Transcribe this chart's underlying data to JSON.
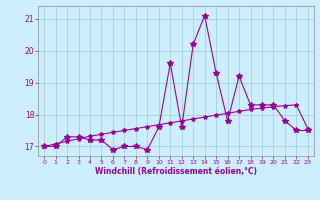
{
  "x": [
    0,
    1,
    2,
    3,
    4,
    5,
    6,
    7,
    8,
    9,
    10,
    11,
    12,
    13,
    14,
    15,
    16,
    17,
    18,
    19,
    20,
    21,
    22,
    23
  ],
  "y_main": [
    17.0,
    17.0,
    17.3,
    17.3,
    17.2,
    17.2,
    16.9,
    17.0,
    17.0,
    16.9,
    17.6,
    19.6,
    17.6,
    20.2,
    21.1,
    19.3,
    17.8,
    19.2,
    18.3,
    18.3,
    18.3,
    17.8,
    17.5,
    17.5
  ],
  "y_trend": [
    17.0,
    17.08,
    17.16,
    17.24,
    17.32,
    17.38,
    17.44,
    17.5,
    17.56,
    17.62,
    17.68,
    17.74,
    17.8,
    17.86,
    17.92,
    17.98,
    18.04,
    18.1,
    18.16,
    18.2,
    18.24,
    18.28,
    18.3,
    17.55
  ],
  "bg_color": "#cceeff",
  "line_color": "#990099",
  "xlabel": "Windchill (Refroidissement éolien,°C)",
  "xlim": [
    -0.5,
    23.5
  ],
  "ylim": [
    16.7,
    21.4
  ],
  "yticks": [
    17,
    18,
    19,
    20,
    21
  ],
  "xticks": [
    0,
    1,
    2,
    3,
    4,
    5,
    6,
    7,
    8,
    9,
    10,
    11,
    12,
    13,
    14,
    15,
    16,
    17,
    18,
    19,
    20,
    21,
    22,
    23
  ],
  "grid_color": "#99cccc",
  "marker": "*",
  "markersize": 4,
  "linewidth": 0.8
}
